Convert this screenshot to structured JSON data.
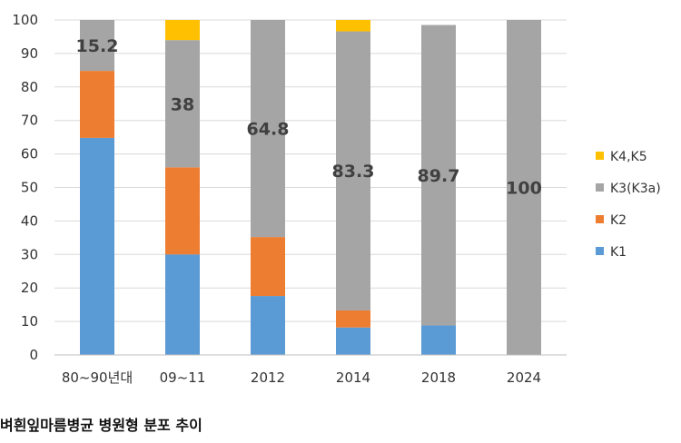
{
  "caption": "벼흰잎마름병균 병원형 분포 추이",
  "chart_data": {
    "type": "bar",
    "stacked": true,
    "categories": [
      "80~90년대",
      "09~11",
      "2012",
      "2014",
      "2018",
      "2024"
    ],
    "series": [
      {
        "name": "K1",
        "color": "#5B9BD5",
        "values": [
          64.8,
          30,
          17.6,
          8.2,
          8.8,
          0
        ]
      },
      {
        "name": "K2",
        "color": "#ED7D31",
        "values": [
          20,
          26,
          17.6,
          5.1,
          0,
          0
        ]
      },
      {
        "name": "K3(K3a)",
        "color": "#A5A5A5",
        "values": [
          15.2,
          38,
          64.8,
          83.3,
          89.7,
          100
        ]
      },
      {
        "name": "K4,K5",
        "color": "#FFC000",
        "values": [
          0,
          6,
          0,
          3.4,
          0,
          0
        ]
      }
    ],
    "data_labels": [
      "15.2",
      "38",
      "64.8",
      "83.3",
      "89.7",
      "100"
    ],
    "ylim": [
      0,
      100
    ],
    "yticks": [
      "0",
      "10",
      "20",
      "30",
      "40",
      "50",
      "60",
      "70",
      "80",
      "90",
      "100"
    ],
    "grid": true,
    "legend_position": "right",
    "xlabel": "",
    "ylabel": ""
  }
}
